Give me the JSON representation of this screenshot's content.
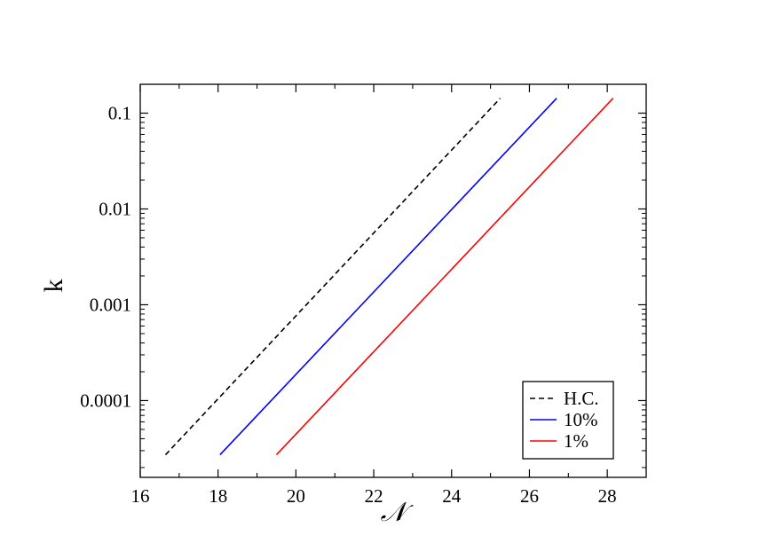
{
  "chart_data": {
    "type": "line",
    "title": "",
    "xlabel": "𝒩",
    "ylabel": "k",
    "xlim": [
      16,
      29
    ],
    "ylim": [
      1.58e-05,
      0.2
    ],
    "yscale": "log",
    "grid": false,
    "legend_position": "bottom-right",
    "x_ticks": [
      16,
      18,
      20,
      22,
      24,
      26,
      28
    ],
    "x_tick_labels": [
      "16",
      "18",
      "20",
      "22",
      "24",
      "26",
      "28"
    ],
    "y_ticks": [
      0.0001,
      0.001,
      0.01,
      0.1
    ],
    "y_tick_labels": [
      "0.0001",
      "0.001",
      "0.01",
      "0.1"
    ],
    "series": [
      {
        "name": "H.C.",
        "color": "#000000",
        "dash": "dashed",
        "x": [
          16.65,
          25.25
        ],
        "y": [
          2.72e-05,
          0.143
        ]
      },
      {
        "name": "10%",
        "color": "#0000ff",
        "dash": "solid",
        "x": [
          18.05,
          26.7
        ],
        "y": [
          2.72e-05,
          0.143
        ]
      },
      {
        "name": "1%",
        "color": "#ff0000",
        "dash": "solid",
        "x": [
          19.5,
          28.15
        ],
        "y": [
          2.72e-05,
          0.143
        ]
      }
    ]
  }
}
